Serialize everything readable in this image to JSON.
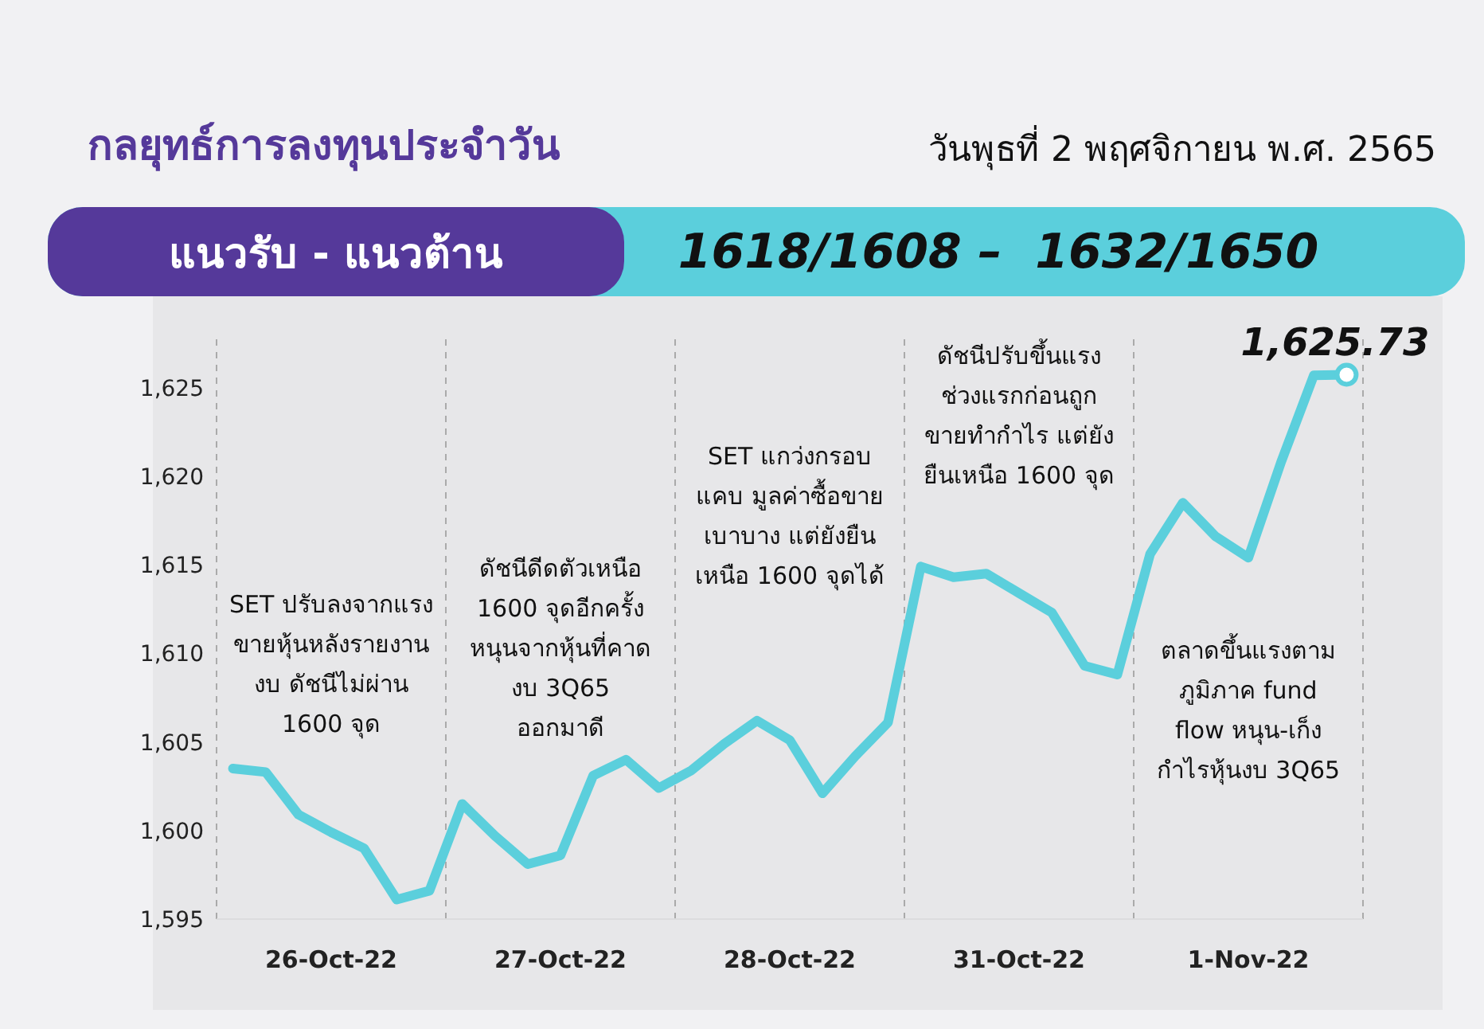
{
  "chart_data": {
    "type": "line",
    "title": "กลยุทธ์การลงทุนประจำวัน",
    "subtitle": "วันพุธที่ 2 พฤศจิกายน พ.ศ. 2565",
    "annotations": [
      "แนวรับ - แนวต้าน",
      "1618/1608 –  1632/1650",
      "SET ปรับลงจากแรง\nขายหุ้นหลังรายงาน\nงบ ดัชนีไม่ผ่าน\n1600 จุด",
      "ดัชนีดีดตัวเหนือ\n1600 จุดอีกครั้ง\nหนุนจากหุ้นที่คาด\nงบ 3Q65\nออกมาดี",
      "SET แกว่งกรอบ\nแคบ มูลค่าซื้อขาย\nเบาบาง แต่ยังยืน\nเหนือ 1600 จุดได้",
      "ดัชนีปรับขึ้นแรง\nช่วงแรกก่อนถูก\nขายทำกำไร แต่ยัง\nยืนเหนือ 1600 จุด",
      "ตลาดขึ้นแรงตาม\nภูมิภาค fund\nflow หนุน-เก็ง\nกำไรหุ้นงบ 3Q65"
    ],
    "categories": [
      null,
      null,
      null,
      "26-Oct-22",
      null,
      null,
      null,
      null,
      null,
      null,
      "27-Oct-22",
      null,
      null,
      null,
      null,
      null,
      null,
      "28-Oct-22",
      null,
      null,
      null,
      null,
      null,
      null,
      "31-Oct-22",
      null,
      null,
      null,
      null,
      null,
      null,
      "1-Nov-22",
      null,
      null,
      null
    ],
    "series": [
      {
        "color": "#5bcfdc",
        "values": [
          1603.5,
          1603.3,
          1600.9,
          1599.9,
          1599.0,
          1596.1,
          1596.6,
          1601.5,
          1599.7,
          1598.1,
          1598.6,
          1603.1,
          1604.0,
          1602.4,
          1603.4,
          1604.9,
          1606.2,
          1605.1,
          1602.1,
          1604.2,
          1606.1,
          1614.9,
          1614.3,
          1614.5,
          1613.4,
          1612.3,
          1609.3,
          1608.8,
          1615.6,
          1618.5,
          1616.6,
          1615.4,
          1620.8,
          1625.7,
          1625.73
        ],
        "value_labels": [
          null,
          null,
          null,
          null,
          null,
          null,
          null,
          null,
          null,
          null,
          null,
          null,
          null,
          null,
          null,
          null,
          null,
          null,
          null,
          null,
          null,
          null,
          null,
          null,
          null,
          null,
          null,
          null,
          null,
          null,
          null,
          null,
          null,
          null,
          "1,625.73"
        ]
      }
    ],
    "ylim": [
      1595,
      1628
    ],
    "yticks": [
      {
        "value": 1595,
        "label": "1,595"
      },
      {
        "value": 1600,
        "label": "1,600"
      },
      {
        "value": 1605,
        "label": "1,605"
      },
      {
        "value": 1610,
        "label": "1,610"
      },
      {
        "value": 1615,
        "label": "1,615"
      },
      {
        "value": 1620,
        "label": "1,620"
      },
      {
        "value": 1625,
        "label": "1,625"
      }
    ],
    "grid": false,
    "legend": false,
    "marker": "none",
    "line_style": "solid"
  }
}
